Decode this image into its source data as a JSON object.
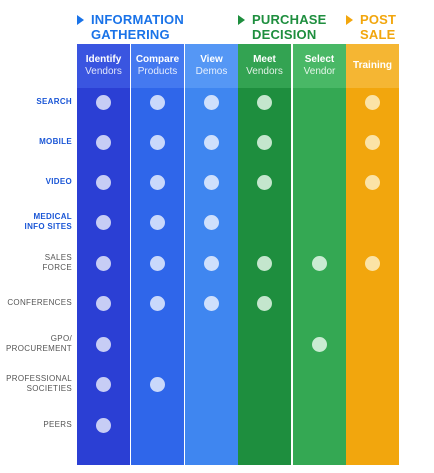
{
  "phases": [
    {
      "id": "info",
      "line1": "INFORMATION",
      "line2": "GATHERING",
      "color": "#1a73e8"
    },
    {
      "id": "purchase",
      "line1": "PURCHASE",
      "line2": "DECISION",
      "color": "#1e8e3e"
    },
    {
      "id": "post",
      "line1": "POST",
      "line2": "SALE",
      "color": "#f2a60d"
    }
  ],
  "columns": [
    {
      "id": "identify",
      "title": "Identify",
      "subtitle": "Vendors",
      "color": "#2b3fd4",
      "header_color": "#3a55e0",
      "dot_color": "#c7cdf5"
    },
    {
      "id": "compare",
      "title": "Compare",
      "subtitle": "Products",
      "color": "#2f66ea",
      "header_color": "#4479f0",
      "dot_color": "#c9d8fb"
    },
    {
      "id": "view",
      "title": "View",
      "subtitle": "Demos",
      "color": "#3f86f0",
      "header_color": "#5597f5",
      "dot_color": "#cfe0fc"
    },
    {
      "id": "meet",
      "title": "Meet",
      "subtitle": "Vendors",
      "color": "#1e8e3e",
      "header_color": "#33a352",
      "dot_color": "#c4e6cd"
    },
    {
      "id": "select",
      "title": "Select",
      "subtitle": "Vendor",
      "color": "#34a853",
      "header_color": "#49b866",
      "dot_color": "#c9ecd2"
    },
    {
      "id": "training",
      "title": "Training",
      "subtitle": "",
      "color": "#f2a60d",
      "header_color": "#f5b633",
      "dot_color": "#fbe3a6"
    }
  ],
  "rows": [
    {
      "id": "search",
      "line1": "SEARCH",
      "line2": "",
      "highlight": true,
      "dots": [
        "identify",
        "compare",
        "view",
        "meet",
        "training"
      ]
    },
    {
      "id": "mobile",
      "line1": "MOBILE",
      "line2": "",
      "highlight": true,
      "dots": [
        "identify",
        "compare",
        "view",
        "meet",
        "training"
      ]
    },
    {
      "id": "video",
      "line1": "VIDEO",
      "line2": "",
      "highlight": true,
      "dots": [
        "identify",
        "compare",
        "view",
        "meet",
        "training"
      ]
    },
    {
      "id": "medical",
      "line1": "MEDICAL",
      "line2": "INFO SITES",
      "highlight": true,
      "dots": [
        "identify",
        "compare",
        "view"
      ]
    },
    {
      "id": "sales",
      "line1": "SALES",
      "line2": "FORCE",
      "highlight": false,
      "dots": [
        "identify",
        "compare",
        "view",
        "meet",
        "select",
        "training"
      ]
    },
    {
      "id": "conferences",
      "line1": "CONFERENCES",
      "line2": "",
      "highlight": false,
      "dots": [
        "identify",
        "compare",
        "view",
        "meet"
      ]
    },
    {
      "id": "gpo",
      "line1": "GPO/",
      "line2": "PROCUREMENT",
      "highlight": false,
      "dots": [
        "identify",
        "select"
      ]
    },
    {
      "id": "societies",
      "line1": "PROFESSIONAL",
      "line2": "SOCIETIES",
      "highlight": false,
      "dots": [
        "identify",
        "compare"
      ]
    },
    {
      "id": "peers",
      "line1": "PEERS",
      "line2": "",
      "highlight": false,
      "dots": [
        "identify"
      ]
    }
  ],
  "colors": {
    "highlight_label": "#1a56d6",
    "normal_label": "#555555"
  }
}
